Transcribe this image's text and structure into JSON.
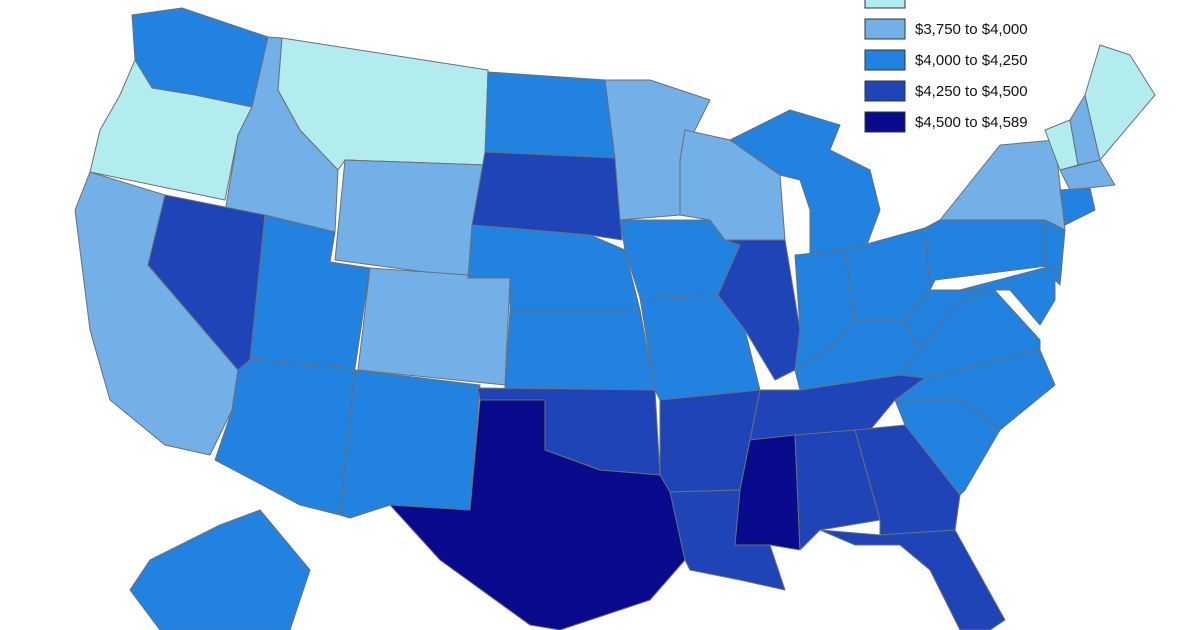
{
  "map": {
    "classes": [
      {
        "label": null,
        "color": "#b3ecef"
      },
      {
        "label": "$3,750 to $4,000",
        "color": "#74b0e8"
      },
      {
        "label": "$4,000 to $4,250",
        "color": "#2282e0"
      },
      {
        "label": "$4,250 to $4,500",
        "color": "#1e44b8"
      },
      {
        "label": "$4,500 to $4,589",
        "color": "#0a0a8c"
      }
    ],
    "regions": [
      2,
      0,
      1,
      0,
      1,
      1,
      3,
      2,
      2,
      1,
      2,
      2,
      3,
      2,
      2,
      3,
      4,
      1,
      2,
      2,
      3,
      3,
      1,
      3,
      2,
      2,
      2,
      2,
      3,
      4,
      3,
      3,
      3,
      2,
      2,
      2,
      2,
      2,
      1,
      2,
      2,
      0,
      1,
      0,
      1,
      2,
      2
    ]
  }
}
